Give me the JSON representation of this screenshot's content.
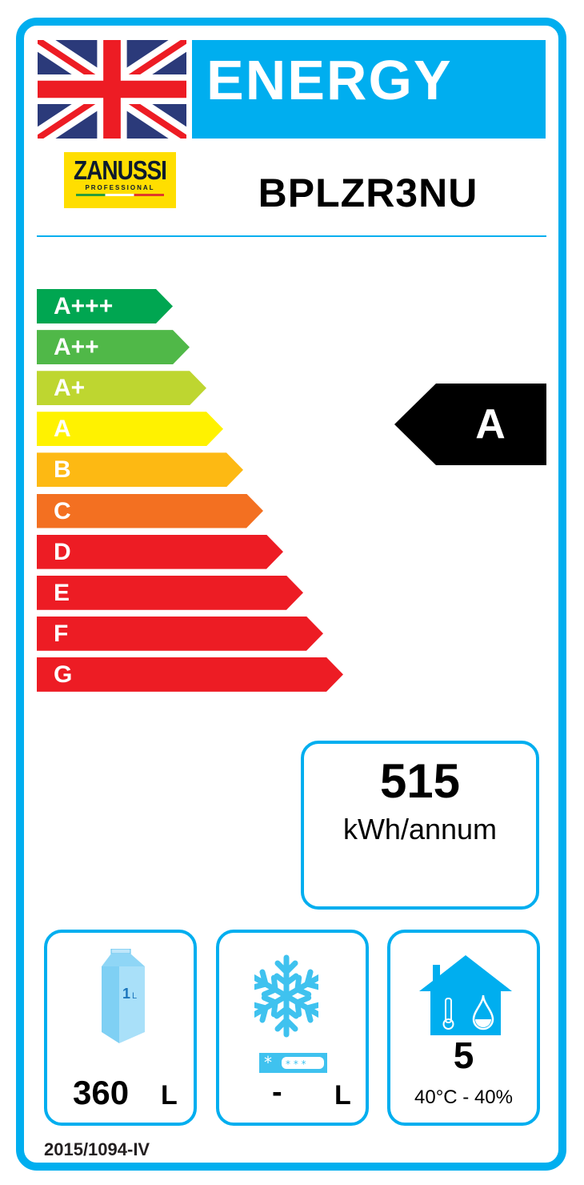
{
  "header": {
    "title": "ENERGY",
    "flag": "union-jack",
    "brand": {
      "name": "ZANUSSI",
      "sub": "PROFESSIONAL"
    },
    "model": "BPLZR3NU"
  },
  "scale": [
    {
      "label": "A+++",
      "color": "#00a651"
    },
    {
      "label": "A++",
      "color": "#50b848"
    },
    {
      "label": "A+",
      "color": "#bed630"
    },
    {
      "label": "A",
      "color": "#fff200"
    },
    {
      "label": "B",
      "color": "#fdb913"
    },
    {
      "label": "C",
      "color": "#f37021"
    },
    {
      "label": "D",
      "color": "#ed1c24"
    },
    {
      "label": "E",
      "color": "#ed1c24"
    },
    {
      "label": "F",
      "color": "#ed1c24"
    },
    {
      "label": "G",
      "color": "#ed1c24"
    }
  ],
  "rating": "A",
  "consumption": {
    "value": "515",
    "unit": "kWh/annum"
  },
  "chill_volume": {
    "icon": "milk-carton-icon",
    "carton_label": "1L",
    "value": "360",
    "unit": "L"
  },
  "frozen_volume": {
    "icon": "snowflake-icon",
    "value": "-",
    "unit": "L"
  },
  "climate": {
    "icon": "house-climate-icon",
    "class": "5",
    "conditions": "40°C - 40%"
  },
  "regulation": "2015/1094-IV",
  "accent": "#00aeef"
}
